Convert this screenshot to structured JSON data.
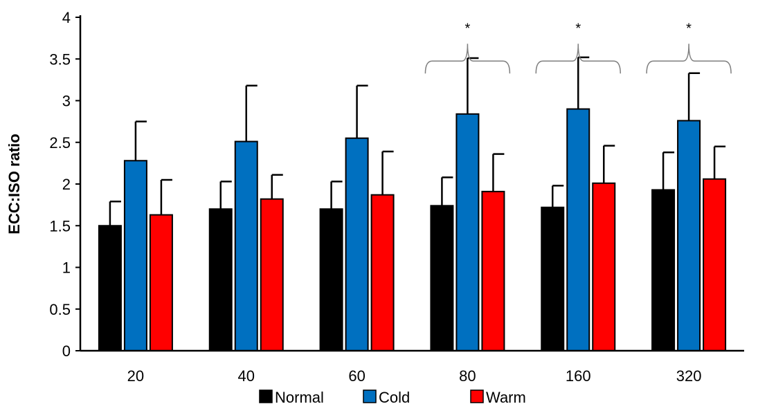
{
  "chart_data": {
    "type": "bar",
    "title": "",
    "xlabel": "",
    "ylabel": "ECC:ISO ratio",
    "ylim": [
      0,
      4
    ],
    "yticks": [
      "0",
      "0.5",
      "1",
      "1.5",
      "2",
      "2.5",
      "3",
      "3.5",
      "4"
    ],
    "categories": [
      "20",
      "40",
      "60",
      "80",
      "160",
      "320"
    ],
    "series": [
      {
        "name": "Normal",
        "color": "#000000",
        "values": [
          1.5,
          1.7,
          1.7,
          1.74,
          1.72,
          1.93
        ],
        "error": [
          0.29,
          0.33,
          0.33,
          0.34,
          0.26,
          0.45
        ]
      },
      {
        "name": "Cold",
        "color": "#0070C0",
        "values": [
          2.28,
          2.51,
          2.55,
          2.84,
          2.9,
          2.76
        ],
        "error": [
          0.47,
          0.67,
          0.63,
          0.67,
          0.62,
          0.57
        ]
      },
      {
        "name": "Warm",
        "color": "#FF0000",
        "values": [
          1.63,
          1.82,
          1.87,
          1.91,
          2.01,
          2.06
        ],
        "error": [
          0.42,
          0.29,
          0.52,
          0.45,
          0.45,
          0.39
        ]
      }
    ],
    "significance": [
      {
        "category": "80",
        "label": "*"
      },
      {
        "category": "160",
        "label": "*"
      },
      {
        "category": "320",
        "label": "*"
      }
    ],
    "legend_placement": "bottom",
    "grid": false
  }
}
